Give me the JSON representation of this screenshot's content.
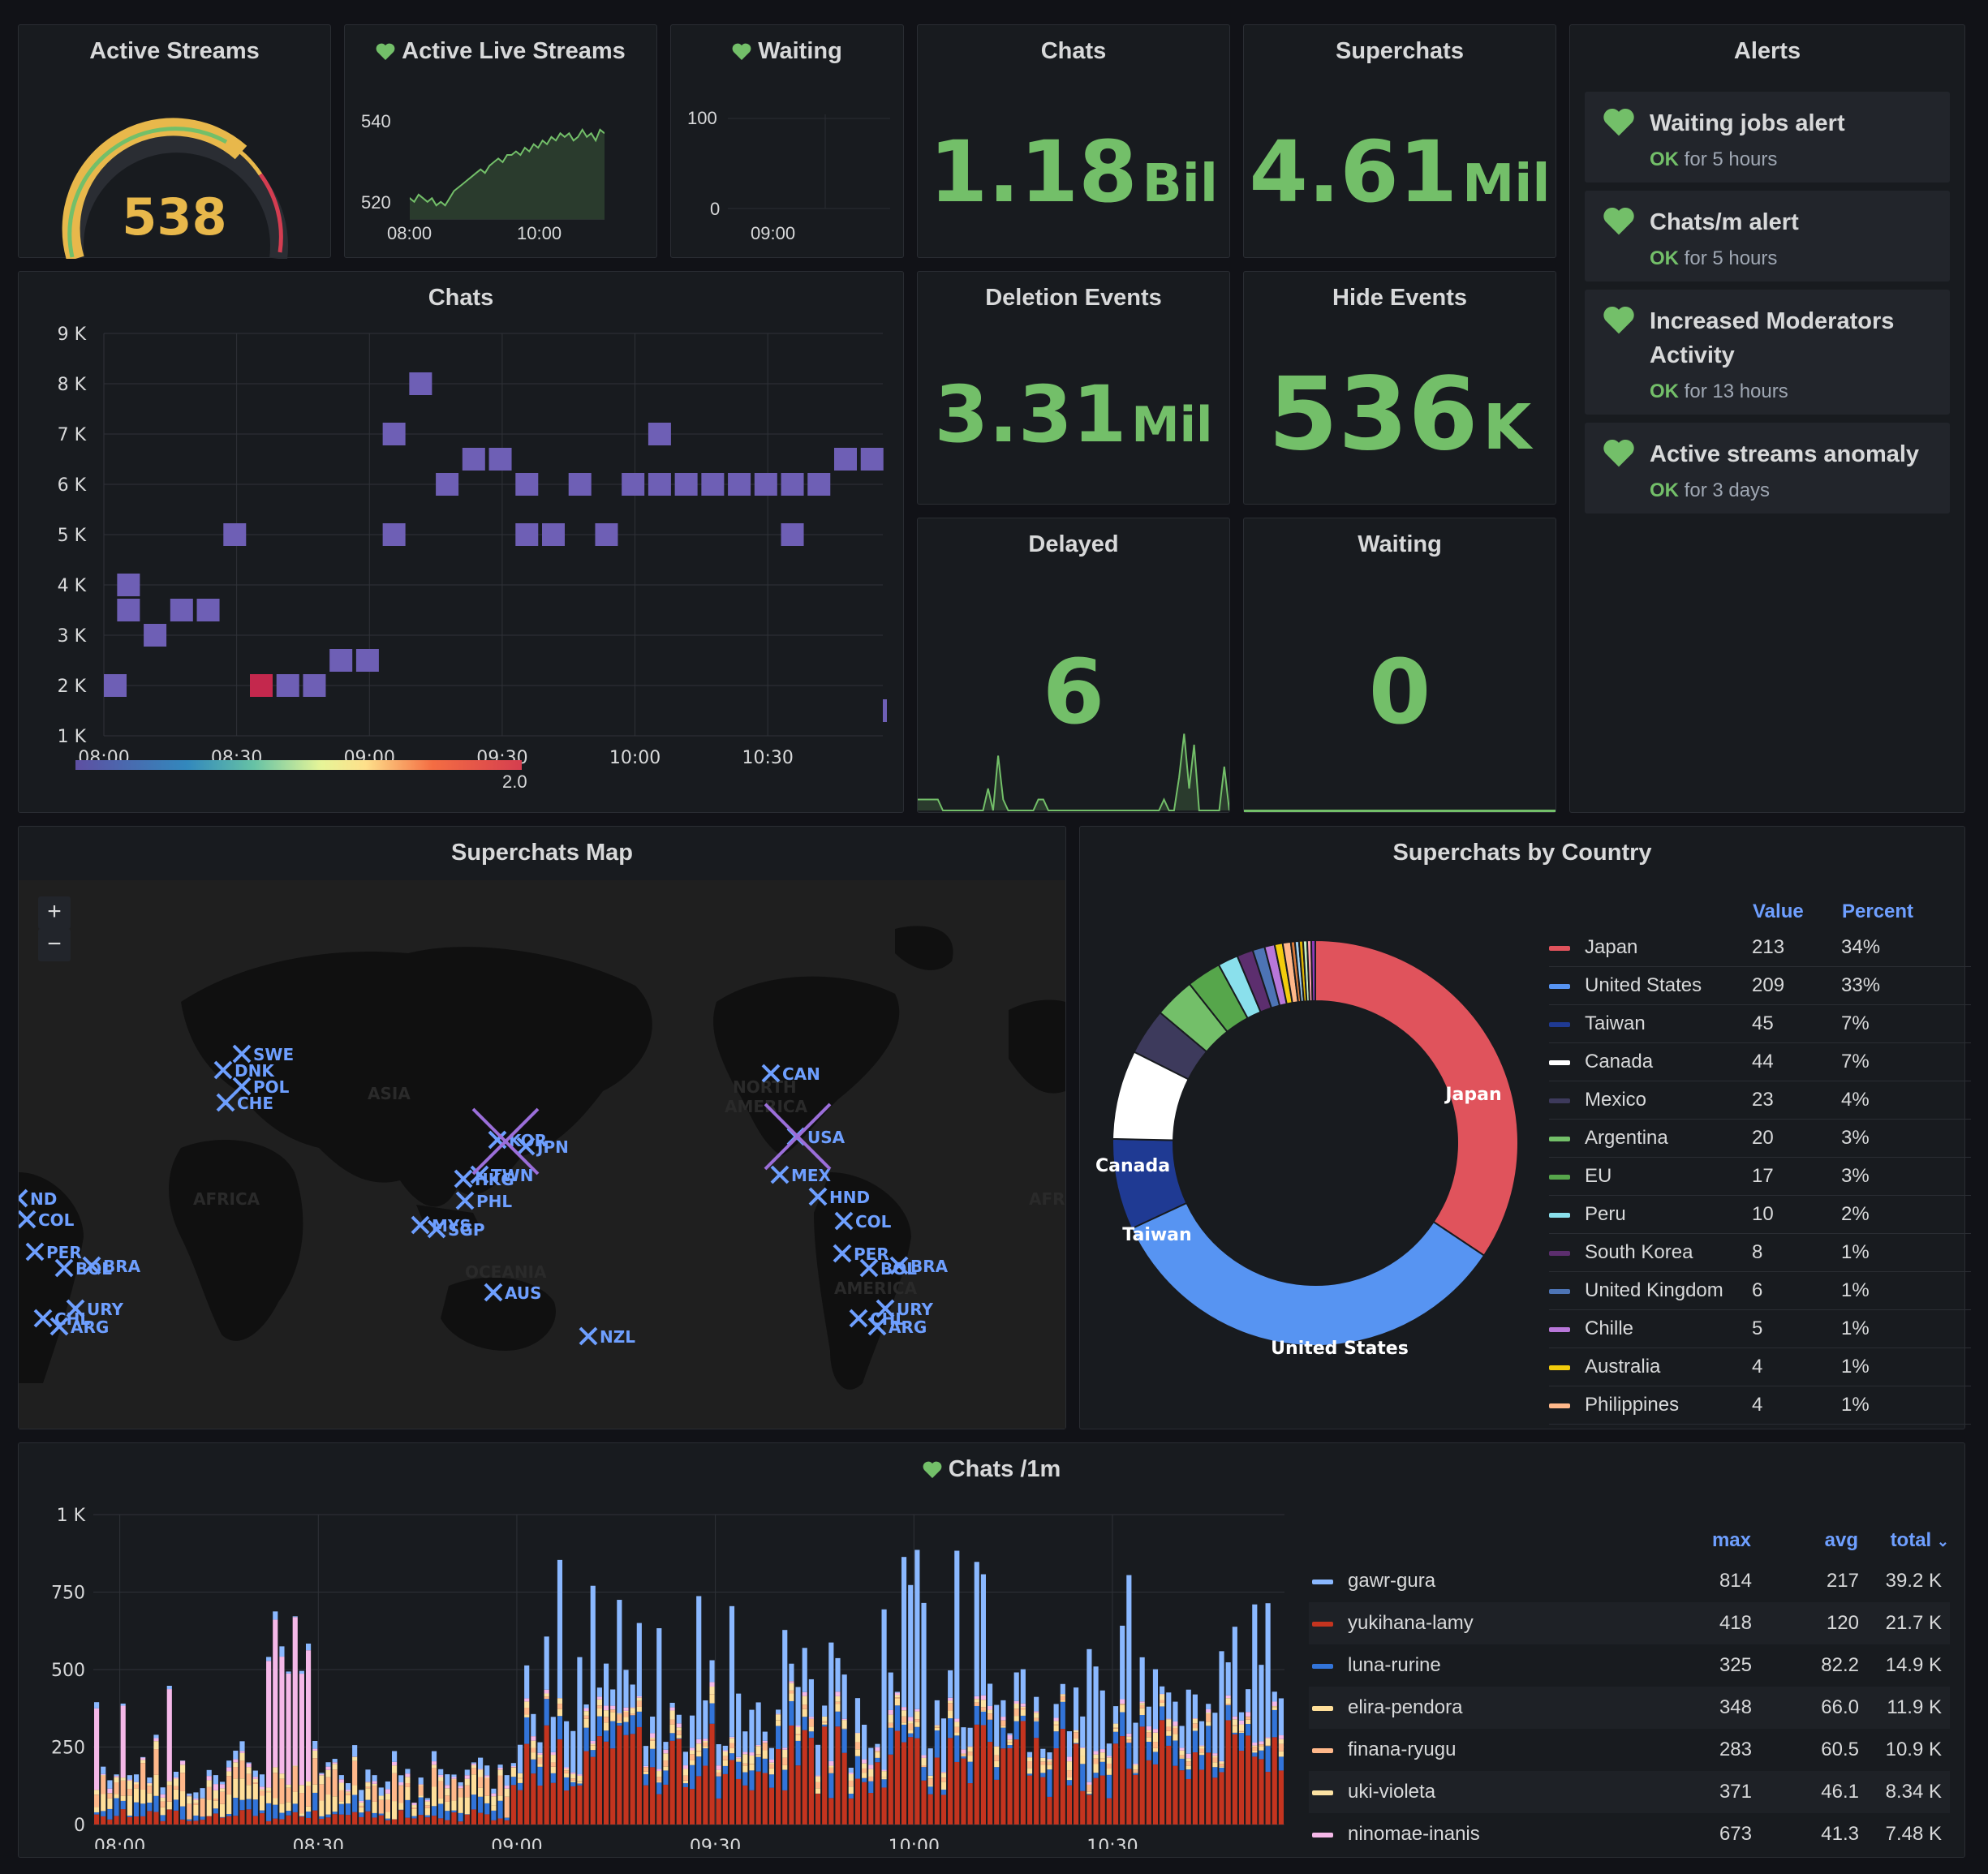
{
  "colors": {
    "green": "#73bf69",
    "yellow": "#e8b84b",
    "purple": "#6e5fb5",
    "red": "#d43d51",
    "blue": "#6e9fff",
    "bg": "#111217",
    "panel": "#181b1f"
  },
  "active_streams": {
    "title": "Active Streams",
    "value": "538",
    "gauge_fraction": 0.76
  },
  "active_live_streams": {
    "title": "Active Live Streams",
    "y_ticks": [
      "540",
      "520"
    ],
    "x_ticks": [
      "08:00",
      "10:00"
    ],
    "icon": "heart-icon"
  },
  "waiting_small": {
    "title": "Waiting",
    "y_ticks": [
      "100",
      "0"
    ],
    "x_ticks": [
      "09:00"
    ],
    "icon": "heart-icon"
  },
  "chats_stat": {
    "title": "Chats",
    "value": "1.18",
    "unit": "Bil"
  },
  "superchats_stat": {
    "title": "Superchats",
    "value": "4.61",
    "unit": "Mil"
  },
  "deletion_stat": {
    "title": "Deletion Events",
    "value": "3.31",
    "unit": "Mil"
  },
  "hide_stat": {
    "title": "Hide Events",
    "value": "536",
    "unit": "K"
  },
  "delayed_stat": {
    "title": "Delayed",
    "value": "6"
  },
  "waiting_stat": {
    "title": "Waiting",
    "value": "0"
  },
  "alerts": {
    "title": "Alerts",
    "items": [
      {
        "name": "Waiting jobs alert",
        "state": "OK",
        "since": "for 5 hours"
      },
      {
        "name": "Chats/m alert",
        "state": "OK",
        "since": "for 5 hours"
      },
      {
        "name": "Increased Moderators Activity",
        "state": "OK",
        "since": "for 13 hours"
      },
      {
        "name": "Active streams anomaly",
        "state": "OK",
        "since": "for 3 days"
      }
    ]
  },
  "chats_heatmap": {
    "title": "Chats",
    "scale_max": "2.0"
  },
  "superchats_map": {
    "title": "Superchats Map",
    "zoom_in": "+",
    "zoom_out": "−",
    "regions": [
      "ASIA",
      "AFRICA",
      "NORTH AMERICA",
      "OCEANIA",
      "AMERICA",
      "AFRI"
    ],
    "markers": [
      "SWE",
      "DNK",
      "POL",
      "CHE",
      "JPN",
      "KOR",
      "TWN",
      "HKG",
      "PHL",
      "MYS",
      "SGP",
      "AUS",
      "NZL",
      "CAN",
      "USA",
      "MEX",
      "HND",
      "COL",
      "PER",
      "BOL",
      "BRA",
      "URY",
      "CHL",
      "ARG",
      "COL",
      "PER",
      "BOL",
      "BRA",
      "URY",
      "CHL",
      "ARG",
      "ND"
    ]
  },
  "superchats_by_country": {
    "title": "Superchats by Country",
    "header_value": "Value",
    "header_percent": "Percent",
    "rows": [
      {
        "name": "Japan",
        "value": "213",
        "percent": "34%",
        "color": "#e0535c"
      },
      {
        "name": "United States",
        "value": "209",
        "percent": "33%",
        "color": "#5794f2"
      },
      {
        "name": "Taiwan",
        "value": "45",
        "percent": "7%",
        "color": "#1f3a93"
      },
      {
        "name": "Canada",
        "value": "44",
        "percent": "7%",
        "color": "#ffffff"
      },
      {
        "name": "Mexico",
        "value": "23",
        "percent": "4%",
        "color": "#3d3a5c"
      },
      {
        "name": "Argentina",
        "value": "20",
        "percent": "3%",
        "color": "#73bf69"
      },
      {
        "name": "EU",
        "value": "17",
        "percent": "3%",
        "color": "#56a64b"
      },
      {
        "name": "Peru",
        "value": "10",
        "percent": "2%",
        "color": "#8ae0ec"
      },
      {
        "name": "South Korea",
        "value": "8",
        "percent": "1%",
        "color": "#5c2e6e"
      },
      {
        "name": "United Kingdom",
        "value": "6",
        "percent": "1%",
        "color": "#4d74b5"
      },
      {
        "name": "Chille",
        "value": "5",
        "percent": "1%",
        "color": "#b877d9"
      },
      {
        "name": "Australia",
        "value": "4",
        "percent": "1%",
        "color": "#f2cc0c"
      },
      {
        "name": "Philippines",
        "value": "4",
        "percent": "1%",
        "color": "#ffb88a"
      }
    ],
    "labels": [
      "Japan",
      "Canada",
      "Taiwan",
      "United States"
    ]
  },
  "chats_1m": {
    "title": "Chats /1m",
    "icon": "heart-icon",
    "header_max": "max",
    "header_avg": "avg",
    "header_total": "total",
    "rows": [
      {
        "name": "gawr-gura",
        "max": "814",
        "avg": "217",
        "total": "39.2 K",
        "color": "#8ab8ff"
      },
      {
        "name": "yukihana-lamy",
        "max": "418",
        "avg": "120",
        "total": "21.7 K",
        "color": "#c4341f"
      },
      {
        "name": "luna-rurine",
        "max": "325",
        "avg": "82.2",
        "total": "14.9 K",
        "color": "#3274d9"
      },
      {
        "name": "elira-pendora",
        "max": "348",
        "avg": "66.0",
        "total": "11.9 K",
        "color": "#ffdf9a"
      },
      {
        "name": "finana-ryugu",
        "max": "283",
        "avg": "60.5",
        "total": "10.9 K",
        "color": "#ffb88a"
      },
      {
        "name": "uki-violeta",
        "max": "371",
        "avg": "46.1",
        "total": "8.34 K",
        "color": "#fce2a3"
      },
      {
        "name": "ninomae-inanis",
        "max": "673",
        "avg": "41.3",
        "total": "7.48 K",
        "color": "#f5b8e8"
      }
    ]
  },
  "chart_data": [
    {
      "type": "heatmap",
      "title": "Chats",
      "x_ticks": [
        "08:00",
        "08:30",
        "09:00",
        "09:30",
        "10:00",
        "10:30"
      ],
      "y_ticks": [
        "1 K",
        "2 K",
        "3 K",
        "4 K",
        "5 K",
        "6 K",
        "7 K",
        "8 K",
        "9 K"
      ],
      "ylim": [
        1000,
        9000
      ],
      "xlim": [
        0,
        176
      ],
      "points": [
        [
          0,
          2000
        ],
        [
          3,
          4000
        ],
        [
          3,
          3500
        ],
        [
          9,
          3000
        ],
        [
          15,
          3500
        ],
        [
          21,
          3500
        ],
        [
          27,
          5000
        ],
        [
          33,
          2000
        ],
        [
          39,
          2000
        ],
        [
          45,
          2000
        ],
        [
          51,
          2500
        ],
        [
          57,
          2500
        ],
        [
          63,
          5000
        ],
        [
          63,
          7000
        ],
        [
          69,
          8000
        ],
        [
          75,
          6000
        ],
        [
          81,
          6500
        ],
        [
          87,
          6500
        ],
        [
          93,
          6000
        ],
        [
          93,
          5000
        ],
        [
          99,
          5000
        ],
        [
          105,
          6000
        ],
        [
          111,
          5000
        ],
        [
          117,
          6000
        ],
        [
          123,
          6000
        ],
        [
          123,
          7000
        ],
        [
          129,
          6000
        ],
        [
          135,
          6000
        ],
        [
          141,
          6000
        ],
        [
          147,
          6000
        ],
        [
          153,
          6000
        ],
        [
          153,
          5000
        ],
        [
          159,
          6000
        ],
        [
          165,
          6500
        ],
        [
          171,
          6500
        ],
        [
          176,
          1500
        ]
      ],
      "red_points": [
        [
          33,
          2000
        ]
      ]
    },
    {
      "type": "line",
      "title": "Active Live Streams",
      "x_ticks": [
        "08:00",
        "10:00"
      ],
      "y_ticks": [
        "540",
        "520"
      ],
      "ylim": [
        518,
        545
      ],
      "values": [
        524,
        523,
        525,
        524,
        523,
        524,
        522,
        523,
        522,
        524,
        526,
        527,
        528,
        529,
        530,
        531,
        532,
        531,
        533,
        534,
        535,
        534,
        536,
        536,
        537,
        536,
        538,
        537,
        539,
        538,
        540,
        539,
        541,
        540,
        542,
        541,
        542,
        540,
        541,
        543,
        541,
        542,
        540,
        543,
        542
      ]
    },
    {
      "type": "line",
      "title": "Delayed",
      "values": [
        1,
        1,
        1,
        1,
        1,
        0,
        0,
        0,
        0,
        0,
        0,
        0,
        0,
        0,
        2,
        0,
        5,
        1,
        0,
        0,
        0,
        0,
        0,
        0,
        1,
        1,
        0,
        0,
        0,
        0,
        0,
        0,
        0,
        0,
        0,
        0,
        0,
        0,
        0,
        0,
        0,
        0,
        0,
        0,
        0,
        0,
        0,
        0,
        0,
        1,
        0,
        0,
        3,
        7,
        2,
        6,
        0,
        0,
        0,
        0,
        0,
        4,
        0
      ]
    },
    {
      "type": "bar",
      "title": "Chats /1m",
      "x_ticks": [
        "08:00",
        "08:30",
        "09:00",
        "09:30",
        "10:00",
        "10:30"
      ],
      "y_ticks": [
        "0",
        "250",
        "500",
        "750",
        "1 K"
      ],
      "ylim": [
        0,
        1000
      ],
      "series_names": [
        "gawr-gura",
        "yukihana-lamy",
        "luna-rurine",
        "elira-pendora",
        "finana-ryugu",
        "uki-violeta",
        "ninomae-inanis"
      ]
    }
  ]
}
